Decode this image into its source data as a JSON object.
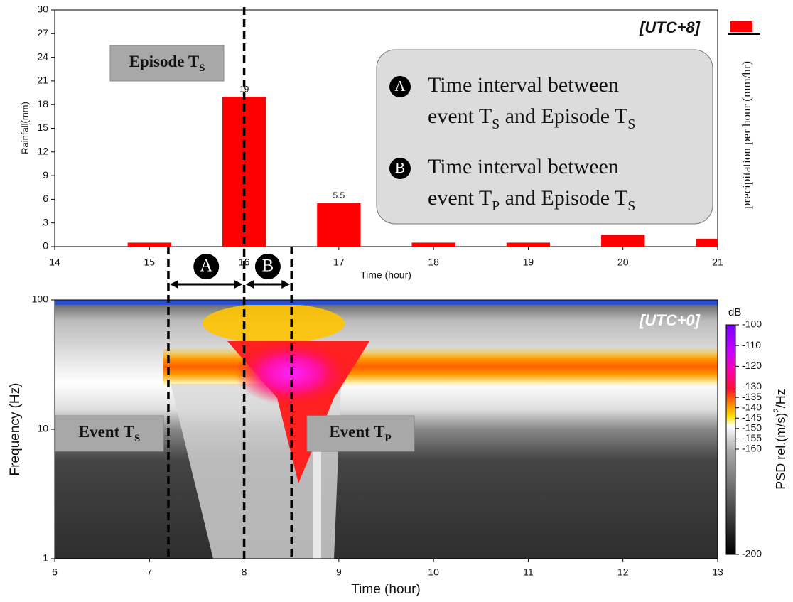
{
  "chart_data": [
    {
      "type": "bar",
      "title": "[UTC+8]",
      "x": [
        15,
        16,
        17,
        18,
        19,
        20,
        21
      ],
      "values": [
        0.5,
        19,
        5.5,
        0.5,
        0.5,
        1.5,
        1
      ],
      "value_labels": [
        null,
        "19",
        "5.5",
        null,
        null,
        null,
        null
      ],
      "color": "#ff0000",
      "xlim": [
        14,
        21
      ],
      "xticks": [
        14,
        15,
        16,
        17,
        18,
        19,
        20,
        21
      ],
      "ylim": [
        0,
        30
      ],
      "yticks": [
        0,
        3,
        6,
        9,
        12,
        15,
        18,
        21,
        24,
        27,
        30
      ],
      "xlabel": "Time (hour)",
      "ylabel": "Rainfall(mm)",
      "y2label": "precipitation per hour (mm/hr)",
      "annotation": {
        "text": "Episode T",
        "sub": "S"
      },
      "legend": [
        {
          "marker": "A",
          "lines": [
            "Time interval between",
            [
              {
                "text": "event T",
                "sub": "S"
              },
              {
                "text": " and Episode T",
                "sub": "S"
              }
            ]
          ]
        },
        {
          "marker": "B",
          "lines": [
            "Time interval between",
            [
              {
                "text": "event T",
                "sub": "P"
              },
              {
                "text": " and Episode T",
                "sub": "S"
              }
            ]
          ]
        }
      ]
    },
    {
      "type": "spectrogram",
      "title": "[UTC+0]",
      "xlim": [
        6,
        13
      ],
      "xticks": [
        6,
        7,
        8,
        9,
        10,
        11,
        12,
        13
      ],
      "ylim": [
        1,
        100
      ],
      "yticks": [
        1,
        10,
        100
      ],
      "log_y": true,
      "xlabel": "Time (hour)",
      "ylabel": "Frequency (Hz)",
      "event_lines": [
        7.2,
        8,
        8.5
      ],
      "interval_labels": [
        "A",
        "B"
      ],
      "annotations": [
        {
          "text": "Event T",
          "sub": "S"
        },
        {
          "text": "Event T",
          "sub": "P"
        }
      ],
      "colorbar": {
        "unit": "dB",
        "label": [
          {
            "text": "PSD rel.(m/s)",
            "sup": "2"
          },
          "/Hz"
        ],
        "ticks": [
          -100,
          -110,
          -120,
          -130,
          -135,
          -140,
          -145,
          -150,
          -155,
          -160,
          -200
        ]
      }
    }
  ]
}
